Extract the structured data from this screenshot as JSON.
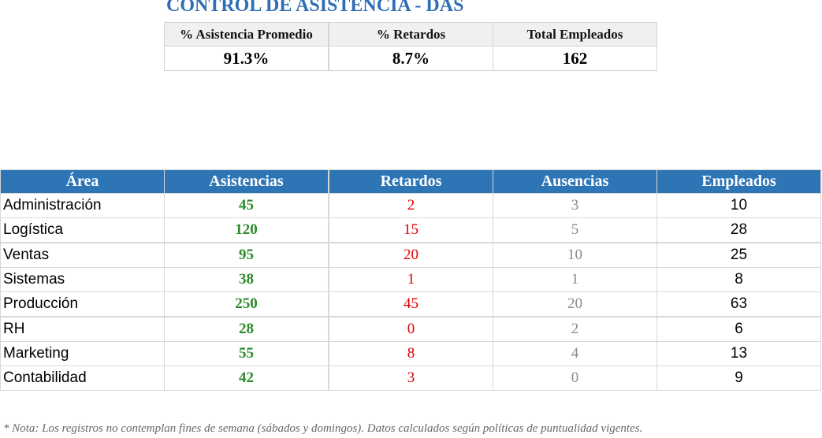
{
  "header": {
    "title": "CONTROL DE ASISTENCIA - DAS"
  },
  "summary": {
    "headers": [
      "% Asistencia Promedio",
      "% Retardos",
      "Total Empleados"
    ],
    "values": [
      "91.3%",
      "8.7%",
      162
    ]
  },
  "table": {
    "headers": [
      "Área",
      "Asistencias",
      "Retardos",
      "Ausencias",
      "Empleados"
    ],
    "rows": [
      [
        "Administración",
        45,
        2,
        3,
        10
      ],
      [
        "Logística",
        120,
        15,
        5,
        28
      ],
      [
        "Ventas",
        95,
        20,
        10,
        25
      ],
      [
        "Sistemas",
        38,
        1,
        1,
        8
      ],
      [
        "Producción",
        250,
        45,
        20,
        63
      ],
      [
        "RH",
        28,
        0,
        2,
        6
      ],
      [
        "Marketing",
        55,
        8,
        4,
        13
      ],
      [
        "Contabilidad",
        42,
        3,
        0,
        9
      ]
    ]
  },
  "note": "* Nota: Los registros no contemplan fines de semana (sábados y domingos). Datos calculados según políticas de puntualidad vigentes."
}
